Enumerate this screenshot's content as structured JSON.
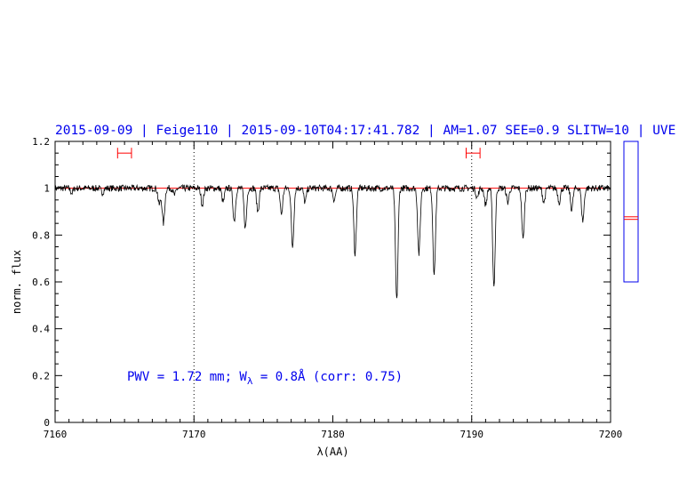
{
  "header": {
    "text": "2015-09-09 | Feige110 | 2015-09-10T04:17:41.782 | AM=1.07 SEE=0.9 SLITW=10 | UVE"
  },
  "annotation": {
    "prefix": "PWV = 1.72 mm; W",
    "subscript": "λ",
    "suffix": " = 0.8Å (corr: 0.75)"
  },
  "colors": {
    "header": "#0000ee",
    "spectrum": "#000000",
    "continuum": "#ff0000",
    "frame": "#000000",
    "side_panel": "#0000ee",
    "marker": "#ff0000"
  },
  "chart_data": {
    "type": "line",
    "xlabel": "λ(AA)",
    "ylabel": "norm. flux",
    "xlim": [
      7160,
      7200
    ],
    "ylim": [
      0,
      1.2
    ],
    "x_ticks": [
      7160,
      7170,
      7180,
      7190,
      7200
    ],
    "y_ticks": [
      0,
      0.2,
      0.4,
      0.6,
      0.8,
      1,
      1.2
    ],
    "x_tick_labels": [
      "7160",
      "7170",
      "7180",
      "7190",
      "7200"
    ],
    "y_tick_labels": [
      "0",
      "0.2",
      "0.4",
      "0.6",
      "0.8",
      "1",
      "1.2"
    ],
    "vertical_dotted_lines": [
      7170,
      7190
    ],
    "continuum_level": 1.0,
    "continuum_ranges": [
      {
        "from": 7164.5,
        "to": 7165.5,
        "y": 1.15
      },
      {
        "from": 7189.6,
        "to": 7190.6,
        "y": 1.15
      }
    ],
    "absorption_lines": [
      {
        "x": 7161.2,
        "depth": 0.02
      },
      {
        "x": 7163.4,
        "depth": 0.02
      },
      {
        "x": 7167.5,
        "depth": 0.07
      },
      {
        "x": 7167.8,
        "depth": 0.15
      },
      {
        "x": 7168.6,
        "depth": 0.03
      },
      {
        "x": 7170.6,
        "depth": 0.07
      },
      {
        "x": 7172.1,
        "depth": 0.06
      },
      {
        "x": 7172.9,
        "depth": 0.14
      },
      {
        "x": 7173.7,
        "depth": 0.17
      },
      {
        "x": 7174.6,
        "depth": 0.1
      },
      {
        "x": 7176.3,
        "depth": 0.11
      },
      {
        "x": 7177.1,
        "depth": 0.25
      },
      {
        "x": 7178.0,
        "depth": 0.06
      },
      {
        "x": 7180.1,
        "depth": 0.05
      },
      {
        "x": 7181.6,
        "depth": 0.28
      },
      {
        "x": 7184.6,
        "depth": 0.48
      },
      {
        "x": 7186.2,
        "depth": 0.28
      },
      {
        "x": 7187.3,
        "depth": 0.37
      },
      {
        "x": 7190.4,
        "depth": 0.04
      },
      {
        "x": 7191.0,
        "depth": 0.07
      },
      {
        "x": 7191.6,
        "depth": 0.42
      },
      {
        "x": 7192.6,
        "depth": 0.06
      },
      {
        "x": 7193.7,
        "depth": 0.22
      },
      {
        "x": 7195.2,
        "depth": 0.06
      },
      {
        "x": 7196.3,
        "depth": 0.06
      },
      {
        "x": 7197.2,
        "depth": 0.09
      },
      {
        "x": 7198.0,
        "depth": 0.14
      }
    ],
    "side_panel": {
      "ylim": [
        0.6,
        1.2
      ],
      "marker_levels": [
        0.867,
        0.878
      ]
    },
    "grid": false
  }
}
